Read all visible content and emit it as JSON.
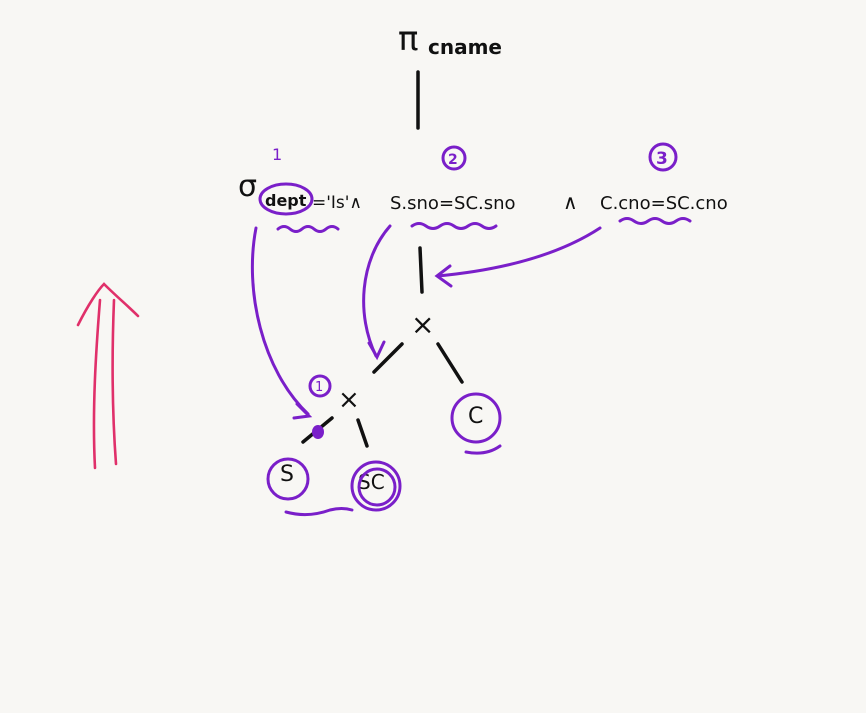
{
  "projection": {
    "symbol": "π",
    "attribute": "cname"
  },
  "selection": {
    "symbol": "σ",
    "attr_circled": "dept",
    "cond1_rest": "='Is'∧",
    "cond2": "S.sno=SC.sno",
    "and2": "∧",
    "cond3": "C.cno=SC.cno"
  },
  "operators": {
    "join_upper": "×",
    "join_lower": "×"
  },
  "relations": [
    "S",
    "SC",
    "C"
  ],
  "annotations": {
    "mark_dept": "1",
    "mark_cond2": "2",
    "mark_cond3": "3",
    "mark_join": "1"
  },
  "colors": {
    "ink": "#111111",
    "pen": "#7a1fc9",
    "arrow": "#e0306a",
    "board": "#f8f7f4"
  }
}
